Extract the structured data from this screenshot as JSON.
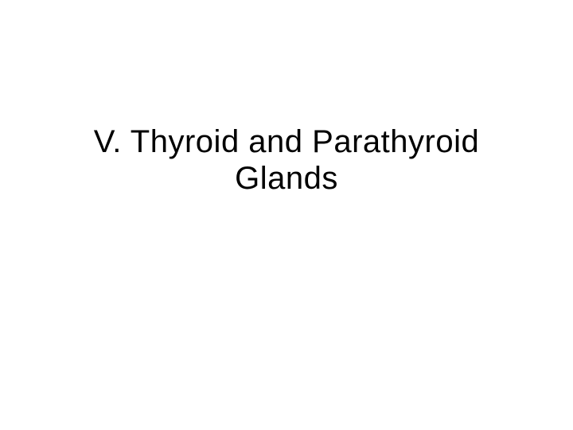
{
  "slide": {
    "title_line1": "V. Thyroid and Parathyroid",
    "title_line2": "Glands",
    "title_fontsize": 40,
    "title_color": "#000000",
    "background_color": "#ffffff",
    "font_family": "Arial"
  }
}
